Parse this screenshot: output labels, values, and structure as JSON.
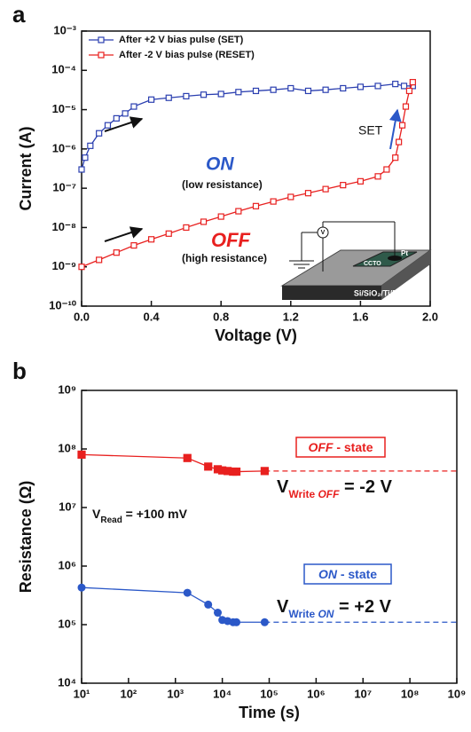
{
  "chart_data": [
    {
      "type": "line",
      "panel": "a",
      "xlabel": "Voltage (V)",
      "ylabel": "Current (A)",
      "xlim": [
        0,
        2.0
      ],
      "xticks": [
        {
          "value": 0,
          "label": "0.0"
        },
        0.4,
        0.8,
        1.2,
        1.6,
        {
          "value": 2,
          "label": "2.0"
        }
      ],
      "ylim": [
        1e-10,
        0.001
      ],
      "yscale": "log",
      "yticks": [
        {
          "value": 1e-10,
          "label": "10⁻¹⁰"
        },
        {
          "value": 1e-09,
          "label": "10⁻⁹"
        },
        {
          "value": 1e-08,
          "label": "10⁻⁸"
        },
        {
          "value": 1e-07,
          "label": "10⁻⁷"
        },
        {
          "value": 1e-06,
          "label": "10⁻⁶"
        },
        {
          "value": 1e-05,
          "label": "10⁻⁵"
        },
        {
          "value": 0.0001,
          "label": "10⁻⁴"
        },
        {
          "value": 0.001,
          "label": "10⁻³"
        }
      ],
      "legend": "upper left",
      "series": [
        {
          "name": "After +2 V bias pulse (SET)",
          "color": "#2b3fb0",
          "marker": "square-open",
          "x": [
            0,
            0.02,
            0.05,
            0.1,
            0.15,
            0.2,
            0.25,
            0.3,
            0.4,
            0.5,
            0.6,
            0.7,
            0.8,
            0.9,
            1.0,
            1.1,
            1.2,
            1.3,
            1.4,
            1.5,
            1.6,
            1.7,
            1.8,
            1.85,
            1.9
          ],
          "values": [
            3e-07,
            6e-07,
            1.2e-06,
            2.5e-06,
            4e-06,
            6e-06,
            8e-06,
            1.2e-05,
            1.8e-05,
            2e-05,
            2.2e-05,
            2.4e-05,
            2.5e-05,
            2.8e-05,
            3e-05,
            3.2e-05,
            3.5e-05,
            3e-05,
            3.2e-05,
            3.5e-05,
            3.8e-05,
            4e-05,
            4.5e-05,
            4e-05,
            4e-05
          ]
        },
        {
          "name": "After  -2 V bias pulse (RESET)",
          "color": "#e8201f",
          "marker": "square-open",
          "x": [
            0,
            0.1,
            0.2,
            0.3,
            0.4,
            0.5,
            0.6,
            0.7,
            0.8,
            0.9,
            1.0,
            1.1,
            1.2,
            1.3,
            1.4,
            1.5,
            1.6,
            1.7,
            1.75,
            1.8,
            1.82,
            1.84,
            1.86,
            1.88,
            1.9
          ],
          "values": [
            1e-09,
            1.5e-09,
            2.3e-09,
            3.5e-09,
            5e-09,
            7e-09,
            1e-08,
            1.4e-08,
            1.9e-08,
            2.6e-08,
            3.5e-08,
            4.6e-08,
            6e-08,
            7.5e-08,
            9.5e-08,
            1.2e-07,
            1.5e-07,
            2e-07,
            3e-07,
            6e-07,
            1.5e-06,
            4e-06,
            1.2e-05,
            3e-05,
            5e-05
          ]
        }
      ],
      "annotations": {
        "on": "ON",
        "on_note": "(low resistance)",
        "off": "OFF",
        "off_note": "(high resistance)",
        "set": "SET",
        "inset_v": "V",
        "inset_pt": "Pt",
        "inset_ccto": "CCTO",
        "inset_substrate": "Si/SiO₂/Ti/Pt"
      }
    },
    {
      "type": "line",
      "panel": "b",
      "xlabel": "Time (s)",
      "ylabel": "Resistance (Ω)",
      "xlim": [
        10,
        1000000000
      ],
      "xscale": "log",
      "xticks": [
        {
          "value": 10,
          "label": "10¹"
        },
        {
          "value": 100,
          "label": "10²"
        },
        {
          "value": 1000,
          "label": "10³"
        },
        {
          "value": 10000,
          "label": "10⁴"
        },
        {
          "value": 100000,
          "label": "10⁵"
        },
        {
          "value": 1000000,
          "label": "10⁶"
        },
        {
          "value": 10000000,
          "label": "10⁷"
        },
        {
          "value": 100000000,
          "label": "10⁸"
        },
        {
          "value": 1000000000,
          "label": "10⁹"
        }
      ],
      "ylim": [
        10000,
        1000000000
      ],
      "yscale": "log",
      "yticks": [
        {
          "value": 10000,
          "label": "10⁴"
        },
        {
          "value": 100000,
          "label": "10⁵"
        },
        {
          "value": 1000000,
          "label": "10⁶"
        },
        {
          "value": 10000000,
          "label": "10⁷"
        },
        {
          "value": 100000000,
          "label": "10⁸"
        },
        {
          "value": 1000000000,
          "label": "10⁹"
        }
      ],
      "extend": true,
      "series": [
        {
          "color": "#e8201f",
          "marker": "square",
          "x": [
            10,
            1800,
            5000,
            8000,
            10000,
            13000,
            17000,
            20000,
            80000
          ],
          "values": [
            80000000,
            70000000,
            50000000,
            45000000,
            43000000,
            42000000,
            41000000,
            41000000,
            42000000
          ]
        },
        {
          "color": "#2b58c8",
          "marker": "circle",
          "x": [
            10,
            1800,
            5000,
            8000,
            10000,
            13000,
            17000,
            20000,
            80000
          ],
          "values": [
            430000,
            350000,
            220000,
            160000,
            120000,
            115000,
            110000,
            110000,
            110000
          ]
        }
      ],
      "annotations": {
        "off_state": {
          "emph": "OFF",
          "rest": " - state"
        },
        "on_state": {
          "emph": "ON",
          "rest": " - state"
        },
        "write_off": {
          "v": "V",
          "sub": "Write ",
          "sub_emph": "OFF",
          "rest": " = -2 V"
        },
        "read": {
          "v": "V",
          "sub": "Read",
          "rest": " = +100 mV"
        },
        "write_on": {
          "v": "V",
          "sub": "Write ",
          "sub_emph": "ON",
          "rest": " = +2 V"
        }
      }
    }
  ]
}
